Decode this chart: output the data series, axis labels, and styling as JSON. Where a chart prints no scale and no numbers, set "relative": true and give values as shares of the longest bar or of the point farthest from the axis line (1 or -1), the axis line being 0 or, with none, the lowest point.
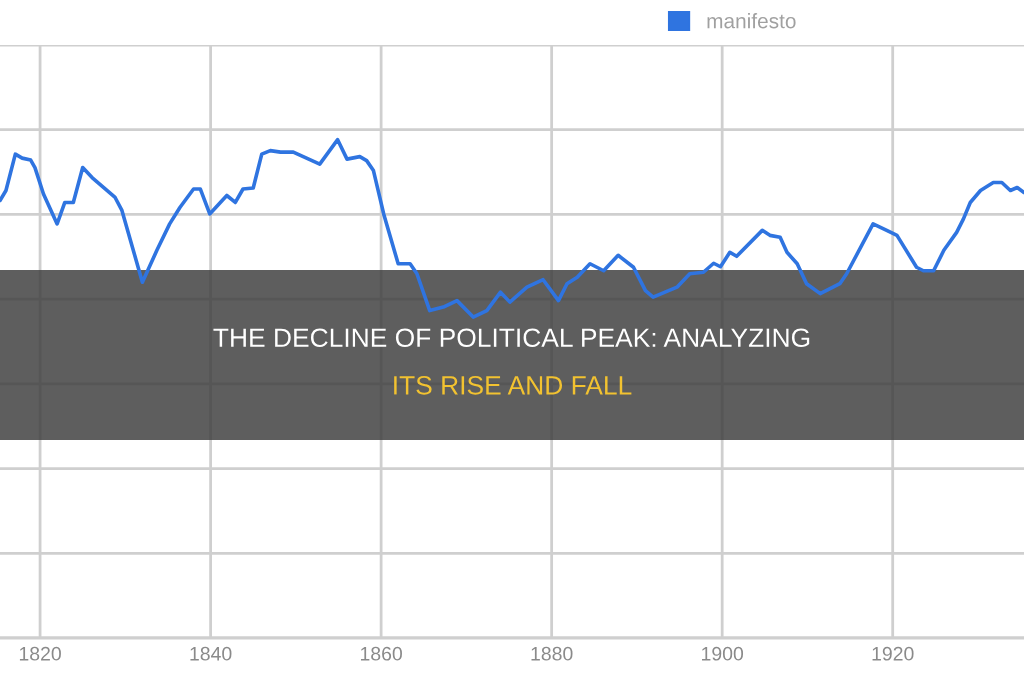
{
  "chart_data": {
    "type": "line",
    "title": "THE DECLINE OF POLITICAL PEAK: ANALYZING",
    "subtitle": "ITS RISE AND FALL",
    "relative": true,
    "xlim": [
      1815.3,
      1935.4
    ],
    "xticks": [
      1820,
      1840,
      1860,
      1880,
      1900,
      1920
    ],
    "grid": true,
    "legend": "top right",
    "tick_labels": "x",
    "line_style": "solid",
    "series": [
      {
        "name": "manifesto",
        "color": "#2f74e0",
        "x": [
          1815.3,
          1816.0,
          1817.1,
          1817.9,
          1818.9,
          1819.4,
          1820.4,
          1822.0,
          1822.9,
          1823.9,
          1825.0,
          1826.1,
          1828.8,
          1829.6,
          1832.0,
          1833.7,
          1835.2,
          1836.4,
          1838.0,
          1838.8,
          1839.9,
          1841.9,
          1842.9,
          1843.8,
          1845.0,
          1846.0,
          1847.0,
          1848.2,
          1849.7,
          1852.8,
          1854.9,
          1856.0,
          1857.5,
          1858.3,
          1859.1,
          1860.3,
          1862.0,
          1863.4,
          1864.2,
          1865.7,
          1867.3,
          1868.9,
          1870.8,
          1872.4,
          1874.0,
          1875.1,
          1877.1,
          1879.0,
          1880.8,
          1881.8,
          1883.0,
          1884.5,
          1886.1,
          1887.8,
          1889.6,
          1891.0,
          1891.9,
          1894.7,
          1896.2,
          1897.8,
          1899.0,
          1899.8,
          1900.9,
          1901.7,
          1904.7,
          1905.6,
          1906.8,
          1907.6,
          1908.8,
          1909.9,
          1911.5,
          1913.8,
          1914.6,
          1917.7,
          1919.3,
          1920.5,
          1922.8,
          1923.6,
          1924.8,
          1926.0,
          1927.5,
          1928.3,
          1929.1,
          1930.3,
          1931.8,
          1932.8,
          1933.8,
          1934.6,
          1935.4
        ],
        "values": [
          0.878,
          0.898,
          0.971,
          0.963,
          0.959,
          0.944,
          0.891,
          0.831,
          0.874,
          0.874,
          0.944,
          0.924,
          0.884,
          0.858,
          0.714,
          0.778,
          0.831,
          0.864,
          0.901,
          0.901,
          0.851,
          0.888,
          0.874,
          0.901,
          0.903,
          0.971,
          0.978,
          0.975,
          0.975,
          0.951,
          1.0,
          0.961,
          0.966,
          0.958,
          0.938,
          0.851,
          0.751,
          0.751,
          0.731,
          0.657,
          0.664,
          0.677,
          0.644,
          0.657,
          0.694,
          0.674,
          0.704,
          0.719,
          0.677,
          0.711,
          0.724,
          0.751,
          0.737,
          0.768,
          0.744,
          0.697,
          0.684,
          0.704,
          0.731,
          0.734,
          0.752,
          0.745,
          0.774,
          0.766,
          0.818,
          0.808,
          0.804,
          0.774,
          0.751,
          0.711,
          0.691,
          0.711,
          0.731,
          0.831,
          0.818,
          0.808,
          0.744,
          0.737,
          0.737,
          0.778,
          0.814,
          0.841,
          0.874,
          0.898,
          0.914,
          0.914,
          0.898,
          0.904,
          0.894
        ]
      }
    ]
  }
}
